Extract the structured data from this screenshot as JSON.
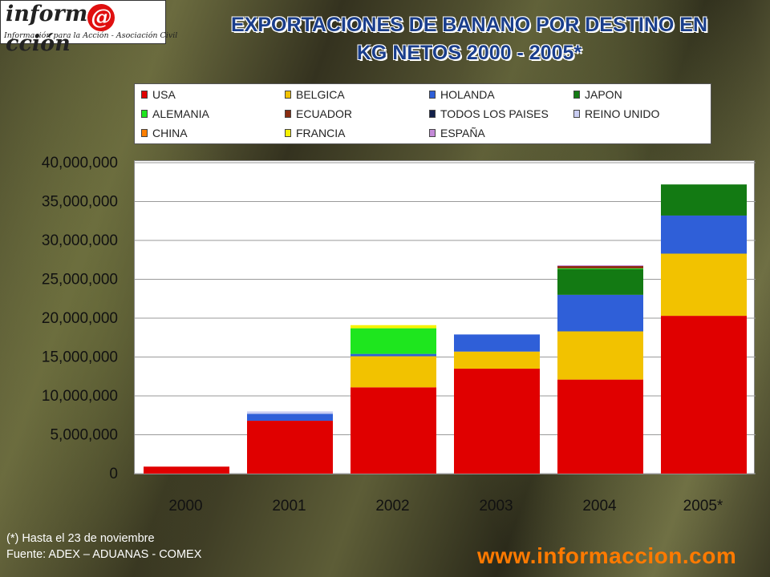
{
  "logo": {
    "brand_left": "inform",
    "brand_at": "@",
    "brand_right": "cción",
    "tagline": "Información para la Acción - Asociación Civil"
  },
  "title_line1": "EXPORTACIONES DE BANANO POR DESTINO EN",
  "title_line2": "KG NETOS 2000 - 2005*",
  "footnote_line1": "(*) Hasta el 23 de noviembre",
  "footnote_line2": "Fuente: ADEX – ADUANAS - COMEX",
  "website": "www.informaccion.com",
  "chart_data": {
    "type": "bar",
    "stacked": true,
    "title": "EXPORTACIONES DE BANANO POR DESTINO EN KG NETOS 2000 - 2005*",
    "categories": [
      "2000",
      "2001",
      "2002",
      "2003",
      "2004",
      "2005*"
    ],
    "ylim": [
      0,
      40000000
    ],
    "yticks": [
      0,
      5000000,
      10000000,
      15000000,
      20000000,
      25000000,
      30000000,
      35000000,
      40000000
    ],
    "ytick_labels": [
      "0",
      "5,000,000",
      "10,000,000",
      "15,000,000",
      "20,000,000",
      "25,000,000",
      "30,000,000",
      "35,000,000",
      "40,000,000"
    ],
    "grid": true,
    "legend_position": "top",
    "series": [
      {
        "name": "USA",
        "color": "#e00000",
        "values": [
          900000,
          6800000,
          11100000,
          13500000,
          12100000,
          20300000
        ]
      },
      {
        "name": "BELGICA",
        "color": "#f2c200",
        "values": [
          0,
          0,
          4000000,
          2200000,
          6200000,
          8000000
        ]
      },
      {
        "name": "HOLANDA",
        "color": "#2f5fd8",
        "values": [
          0,
          900000,
          300000,
          2200000,
          4700000,
          4900000
        ]
      },
      {
        "name": "JAPON",
        "color": "#137a13",
        "values": [
          0,
          0,
          0,
          0,
          3300000,
          4000000
        ]
      },
      {
        "name": "ALEMANIA",
        "color": "#1ee61e",
        "values": [
          0,
          0,
          3300000,
          0,
          100000,
          0
        ]
      },
      {
        "name": "ECUADOR",
        "color": "#8a2c10",
        "values": [
          0,
          0,
          0,
          0,
          300000,
          0
        ]
      },
      {
        "name": "TODOS LOS PAISES",
        "color": "#13204a",
        "values": [
          0,
          0,
          0,
          0,
          0,
          0
        ]
      },
      {
        "name": "REINO UNIDO",
        "color": "#c9cdf2",
        "values": [
          0,
          300000,
          0,
          0,
          0,
          0
        ]
      },
      {
        "name": "CHINA",
        "color": "#ff7f00",
        "values": [
          0,
          0,
          0,
          0,
          0,
          0
        ]
      },
      {
        "name": "FRANCIA",
        "color": "#f7f200",
        "values": [
          0,
          0,
          400000,
          0,
          0,
          0
        ]
      },
      {
        "name": "ESPAÑA",
        "color": "#c48ad8",
        "values": [
          0,
          0,
          0,
          0,
          100000,
          0
        ]
      }
    ]
  }
}
